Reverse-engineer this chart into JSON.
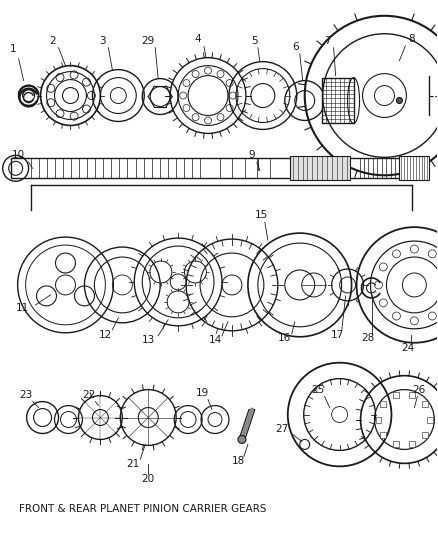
{
  "title": "FRONT & REAR PLANET PINION CARRIER GEARS",
  "background_color": "#ffffff",
  "line_color": "#1a1a1a",
  "fig_width": 4.38,
  "fig_height": 5.33,
  "dpi": 100,
  "imgW": 438,
  "imgH": 533
}
